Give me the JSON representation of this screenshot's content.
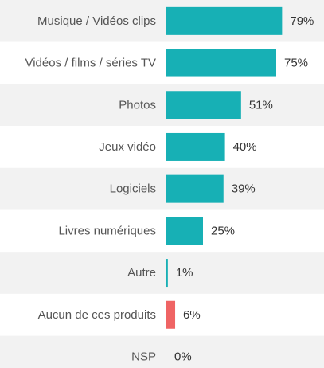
{
  "chart_data": {
    "type": "bar",
    "orientation": "horizontal",
    "categories": [
      "Musique / Vidéos clips",
      "Vidéos / films / séries TV",
      "Photos",
      "Jeux vidéo",
      "Logiciels",
      "Livres numériques",
      "Autre",
      "Aucun de ces produits",
      "NSP"
    ],
    "values": [
      79,
      75,
      51,
      40,
      39,
      25,
      1,
      6,
      0
    ],
    "value_labels": [
      "79%",
      "75%",
      "51%",
      "40%",
      "39%",
      "25%",
      "1%",
      "6%",
      "0%"
    ],
    "bar_colors": [
      "#17b0b5",
      "#17b0b5",
      "#17b0b5",
      "#17b0b5",
      "#17b0b5",
      "#17b0b5",
      "#17b0b5",
      "#ef6464",
      "#17b0b5"
    ],
    "title": "",
    "xlabel": "",
    "ylabel": "",
    "xlim": [
      0,
      100
    ],
    "grid": false,
    "legend": "none",
    "row_stripe_colors": [
      "#f2f2f2",
      "#ffffff"
    ]
  }
}
